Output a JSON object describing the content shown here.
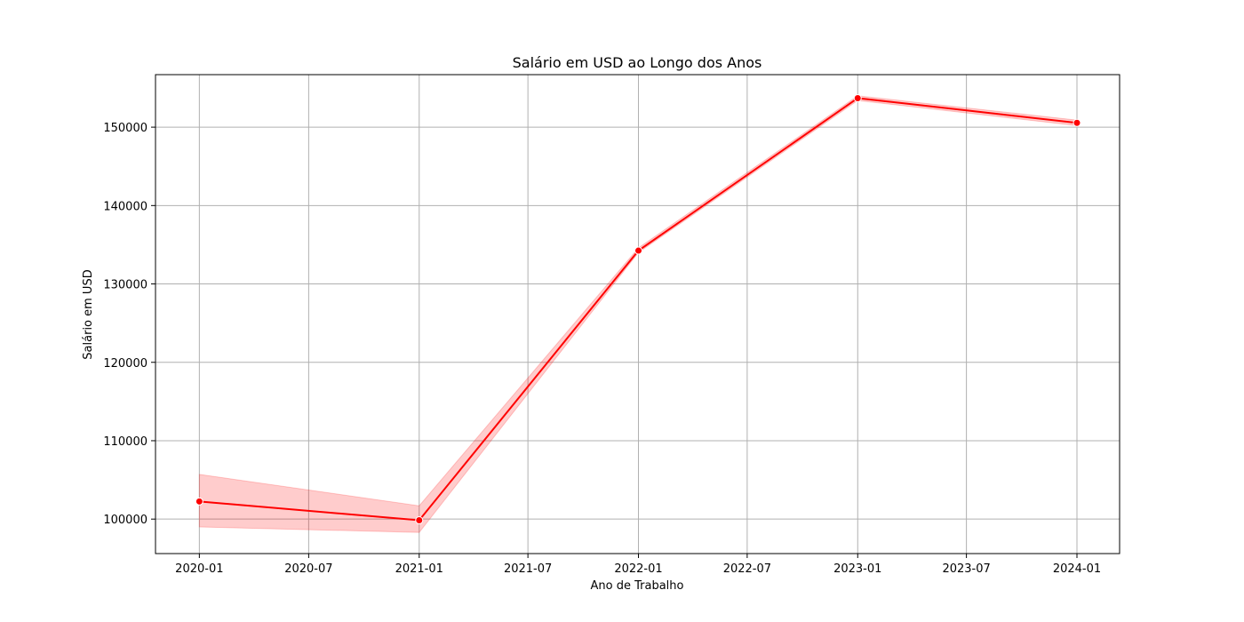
{
  "chart_data": {
    "type": "line",
    "title": "Salário em USD ao Longo dos Anos",
    "xlabel": "Ano de Trabalho",
    "ylabel": "Salário em USD",
    "x": [
      "2020-01",
      "2021-01",
      "2022-01",
      "2023-01",
      "2024-01"
    ],
    "series": [
      {
        "values": [
          102250,
          99850,
          134250,
          153700,
          150550
        ],
        "ci_lower": [
          99000,
          98300,
          134000,
          153400,
          150200
        ],
        "ci_upper": [
          105700,
          101700,
          134600,
          154000,
          150900
        ]
      }
    ],
    "x_ticks": [
      "2020-01",
      "2020-07",
      "2021-01",
      "2021-07",
      "2022-01",
      "2022-07",
      "2023-01",
      "2023-07",
      "2024-01"
    ],
    "xlim": [
      "2019-10-20",
      "2024-03-12"
    ],
    "y_ticks": [
      100000,
      110000,
      120000,
      130000,
      140000,
      150000
    ],
    "ylim": [
      95600,
      156700
    ],
    "grid": true,
    "colors": {
      "line": "#ff0000",
      "band": "#ff0000",
      "grid": "#b0b0b0"
    }
  }
}
